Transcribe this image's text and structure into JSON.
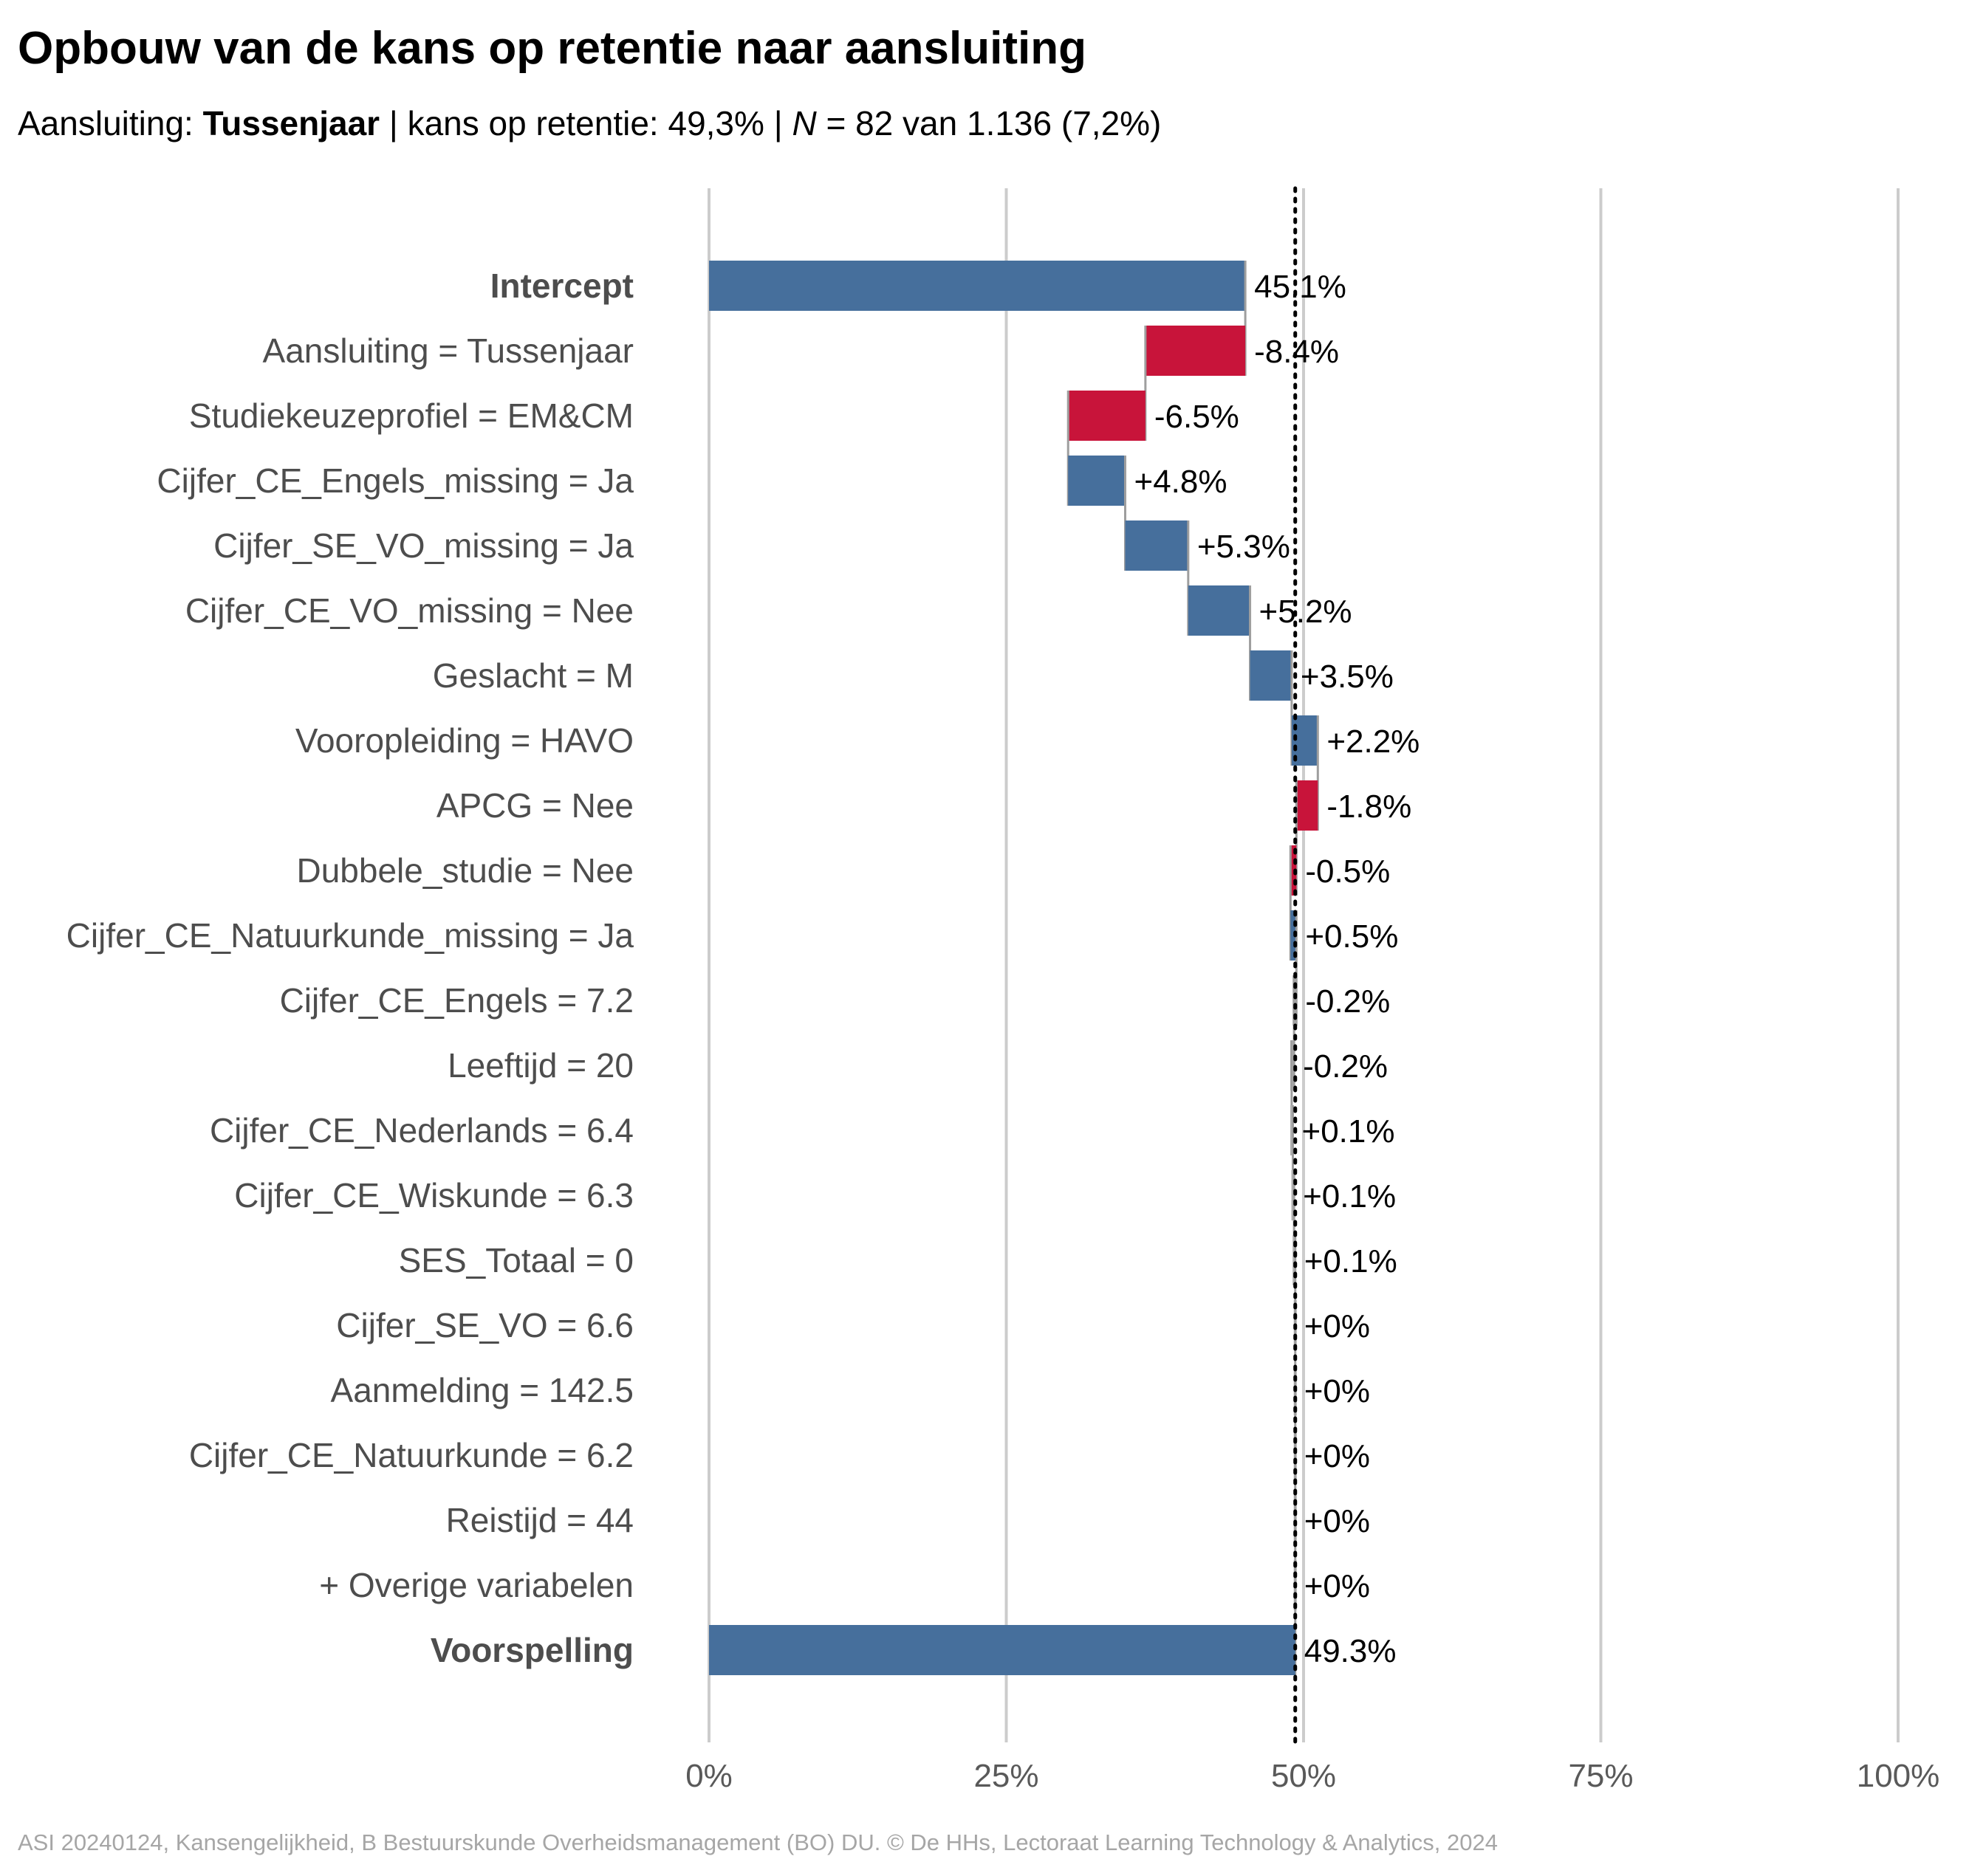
{
  "title": "Opbouw van de kans op retentie naar aansluiting",
  "subtitle": {
    "prefix": "Aansluiting: ",
    "group": "Tussenjaar",
    "middle": " | kans op retentie: 49,3% | ",
    "n_symbol": "N",
    "suffix": " = 82 van 1.136 (7,2%)"
  },
  "caption": "ASI 20240124, Kansengelijkheid, B Bestuurskunde Overheidsmanagement (BO) DU. © De HHs, Lectoraat Learning Technology & Analytics, 2024",
  "colors": {
    "positive": "#466f9c",
    "negative": "#c8143a",
    "negligible": "#b3b3b3",
    "grid": "#cccccc",
    "axis_text": "#595959",
    "row_label": "#4d4d4d"
  },
  "chart_data": {
    "type": "bar",
    "subtype": "waterfall",
    "xlim": [
      0,
      100
    ],
    "x_ticks": [
      0,
      25,
      50,
      75,
      100
    ],
    "x_tick_labels": [
      "0%",
      "25%",
      "50%",
      "75%",
      "100%"
    ],
    "reference_line": 49.3,
    "grid": true,
    "rows": [
      {
        "label": "Intercept",
        "value": 45.1,
        "value_label": "45.1%",
        "kind": "total",
        "bold": true
      },
      {
        "label": "Aansluiting = Tussenjaar",
        "value": -8.4,
        "value_label": "-8.4%",
        "kind": "negative"
      },
      {
        "label": "Studiekeuzeprofiel = EM&CM",
        "value": -6.5,
        "value_label": "-6.5%",
        "kind": "negative"
      },
      {
        "label": "Cijfer_CE_Engels_missing = Ja",
        "value": 4.8,
        "value_label": "+4.8%",
        "kind": "positive"
      },
      {
        "label": "Cijfer_SE_VO_missing = Ja",
        "value": 5.3,
        "value_label": "+5.3%",
        "kind": "positive"
      },
      {
        "label": "Cijfer_CE_VO_missing = Nee",
        "value": 5.2,
        "value_label": "+5.2%",
        "kind": "positive"
      },
      {
        "label": "Geslacht = M",
        "value": 3.5,
        "value_label": "+3.5%",
        "kind": "positive"
      },
      {
        "label": "Vooropleiding = HAVO",
        "value": 2.2,
        "value_label": "+2.2%",
        "kind": "positive"
      },
      {
        "label": "APCG = Nee",
        "value": -1.8,
        "value_label": "-1.8%",
        "kind": "negative"
      },
      {
        "label": "Dubbele_studie = Nee",
        "value": -0.5,
        "value_label": "-0.5%",
        "kind": "negative"
      },
      {
        "label": "Cijfer_CE_Natuurkunde_missing = Ja",
        "value": 0.5,
        "value_label": "+0.5%",
        "kind": "positive"
      },
      {
        "label": "Cijfer_CE_Engels = 7.2",
        "value": -0.2,
        "value_label": "-0.2%",
        "kind": "negligible"
      },
      {
        "label": "Leeftijd = 20",
        "value": -0.2,
        "value_label": "-0.2%",
        "kind": "negligible"
      },
      {
        "label": "Cijfer_CE_Nederlands = 6.4",
        "value": 0.1,
        "value_label": "+0.1%",
        "kind": "negligible"
      },
      {
        "label": "Cijfer_CE_Wiskunde = 6.3",
        "value": 0.1,
        "value_label": "+0.1%",
        "kind": "negligible"
      },
      {
        "label": "SES_Totaal = 0",
        "value": 0.1,
        "value_label": "+0.1%",
        "kind": "negligible"
      },
      {
        "label": "Cijfer_SE_VO = 6.6",
        "value": 0,
        "value_label": "+0%",
        "kind": "negligible"
      },
      {
        "label": "Aanmelding = 142.5",
        "value": 0,
        "value_label": "+0%",
        "kind": "negligible"
      },
      {
        "label": "Cijfer_CE_Natuurkunde = 6.2",
        "value": 0,
        "value_label": "+0%",
        "kind": "negligible"
      },
      {
        "label": "Reistijd = 44",
        "value": 0,
        "value_label": "+0%",
        "kind": "negligible"
      },
      {
        "label": "+ Overige variabelen",
        "value": 0,
        "value_label": "+0%",
        "kind": "negligible"
      },
      {
        "label": "Voorspelling",
        "value": 49.3,
        "value_label": "49.3%",
        "kind": "total",
        "bold": true
      }
    ]
  }
}
